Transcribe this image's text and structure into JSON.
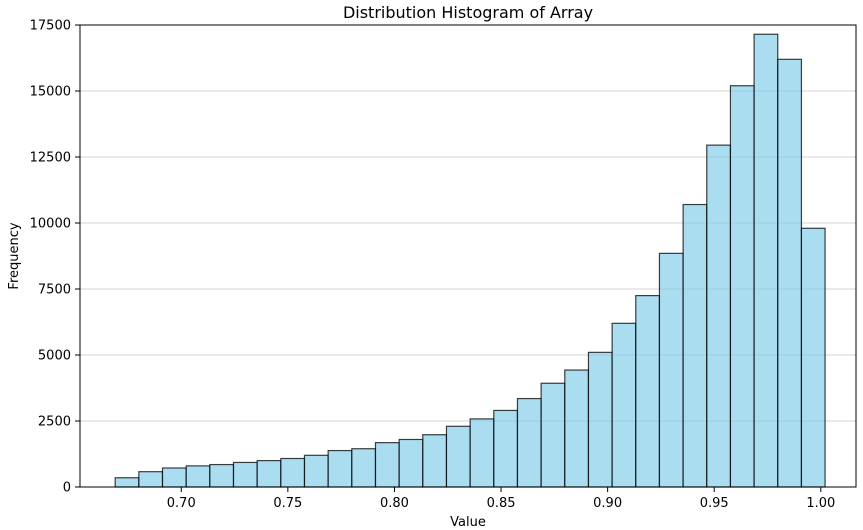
{
  "chart_data": {
    "type": "bar",
    "title": "Distribution Histogram of Array",
    "xlabel": "Value",
    "ylabel": "Frequency",
    "xlim": [
      0.6525,
      1.0165
    ],
    "ylim": [
      0,
      17500
    ],
    "x_ticks": [
      0.7,
      0.75,
      0.8,
      0.85,
      0.9,
      0.95,
      1.0
    ],
    "x_tick_labels": [
      "0.70",
      "0.75",
      "0.80",
      "0.85",
      "0.90",
      "0.95",
      "1.00"
    ],
    "y_ticks": [
      0,
      2500,
      5000,
      7500,
      10000,
      12500,
      15000,
      17500
    ],
    "y_tick_labels": [
      "0",
      "2500",
      "5000",
      "7500",
      "10000",
      "12500",
      "15000",
      "17500"
    ],
    "grid": {
      "axis": "y",
      "on": true
    },
    "bin_edges": [
      0.669,
      0.6801,
      0.6912,
      0.7023,
      0.7134,
      0.7245,
      0.7356,
      0.7467,
      0.7578,
      0.7689,
      0.78,
      0.7911,
      0.8022,
      0.8133,
      0.8244,
      0.8355,
      0.8466,
      0.8577,
      0.8688,
      0.8799,
      0.891,
      0.9021,
      0.9132,
      0.9243,
      0.9354,
      0.9465,
      0.9576,
      0.9687,
      0.9798,
      0.9909,
      1.002
    ],
    "values": [
      350,
      580,
      720,
      800,
      850,
      930,
      1000,
      1080,
      1200,
      1380,
      1450,
      1680,
      1800,
      1980,
      2300,
      2580,
      2900,
      3350,
      3930,
      4430,
      5100,
      6200,
      7250,
      8850,
      10700,
      12950,
      15200,
      17150,
      16200,
      9800
    ],
    "colors": {
      "bar_fill": "#87ceeb",
      "bar_edge": "#000000",
      "grid": "#b0b0b0"
    }
  }
}
